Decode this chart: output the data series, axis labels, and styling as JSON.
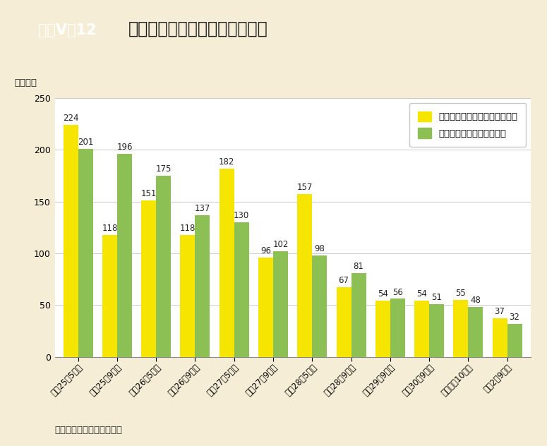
{
  "title_box_text": "資料V－12",
  "title_text": "きのこ原木のマッチングの状況",
  "ylabel": "（万本）",
  "source": "資料：林野庁経営課調べ。",
  "ylim": [
    0,
    250
  ],
  "yticks": [
    0,
    50,
    100,
    150,
    200,
    250
  ],
  "categories": [
    "平成25年5月末",
    "平成25年9月末",
    "平成26年5月末",
    "平成26年9月末",
    "平成27年5月末",
    "平成27年9月末",
    "平成28年5月末",
    "平成28年9月末",
    "平成29年9月末",
    "平成30年9月末",
    "令和元年10月末",
    "令和2年9月末"
  ],
  "yellow_values": [
    224,
    118,
    151,
    118,
    182,
    96,
    157,
    67,
    54,
    54,
    55,
    37
  ],
  "green_values": [
    201,
    196,
    175,
    137,
    130,
    102,
    98,
    81,
    56,
    51,
    48,
    32
  ],
  "yellow_color": "#F5E500",
  "green_color": "#8DC054",
  "background_color": "#F5EDD5",
  "plot_background": "#FFFFFF",
  "legend_yellow": "他の都道府県からの供給希望量",
  "legend_green": "都道府県外への供給可能量",
  "title_box_bg": "#2E8B3A",
  "title_box_text_color": "#FFFFFF",
  "title_text_color": "#1A1A1A",
  "bar_width": 0.38,
  "label_fontsize": 8.5,
  "axis_fontsize": 9,
  "figsize": [
    7.75,
    6.32
  ],
  "dpi": 100
}
